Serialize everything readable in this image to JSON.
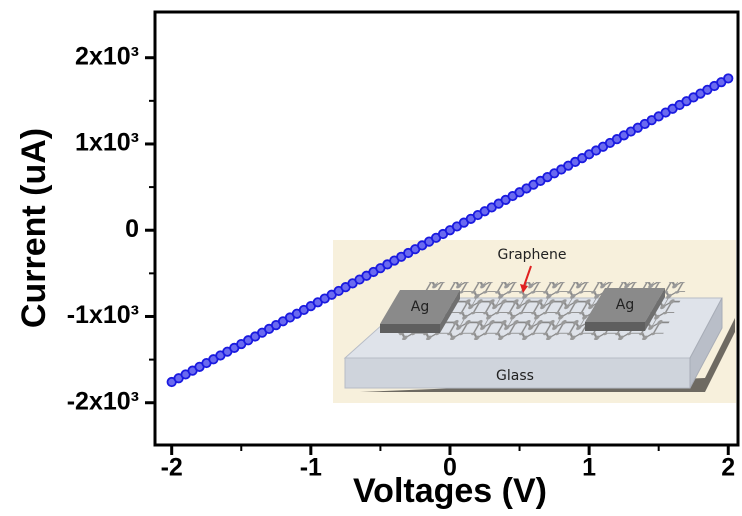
{
  "chart_data": {
    "type": "scatter",
    "xlabel": "Voltages (V)",
    "ylabel": "Current (uA)",
    "xlim": [
      -2.12,
      2.07
    ],
    "ylim": [
      -2490,
      2530
    ],
    "xticks": [
      -2,
      -1,
      0,
      1,
      2
    ],
    "yticks": [
      {
        "value": -2000,
        "label": "-2x10³"
      },
      {
        "value": -1000,
        "label": "-1x10³"
      },
      0,
      {
        "value": 1000,
        "label": "1x10³"
      },
      {
        "value": 2000,
        "label": "2x10³"
      }
    ],
    "xminorticks": [
      -1.5,
      -0.5,
      0.5,
      1.5
    ],
    "yminorticks": [
      -1500,
      -500,
      500,
      1500
    ],
    "series": [
      {
        "color": "#1a1ae0",
        "x": [
          -2,
          -1.95,
          -1.9,
          -1.85,
          -1.8,
          -1.75,
          -1.7,
          -1.65,
          -1.6,
          -1.55,
          -1.5,
          -1.45,
          -1.4,
          -1.35,
          -1.3,
          -1.25,
          -1.2,
          -1.15,
          -1.1,
          -1.05,
          -1,
          -0.95,
          -0.9,
          -0.85,
          -0.8,
          -0.75,
          -0.7,
          -0.65,
          -0.6,
          -0.55,
          -0.5,
          -0.45,
          -0.4,
          -0.35,
          -0.3,
          -0.25,
          -0.2,
          -0.15,
          -0.1,
          -0.05,
          0,
          0.05,
          0.1,
          0.15,
          0.2,
          0.25,
          0.3,
          0.35,
          0.4,
          0.45,
          0.5,
          0.55,
          0.6,
          0.65,
          0.7,
          0.75,
          0.8,
          0.85,
          0.9,
          0.95,
          1,
          1.05,
          1.1,
          1.15,
          1.2,
          1.25,
          1.3,
          1.35,
          1.4,
          1.45,
          1.5,
          1.55,
          1.6,
          1.65,
          1.7,
          1.75,
          1.8,
          1.85,
          1.9,
          1.95,
          2
        ],
        "values": [
          -1760,
          -1716,
          -1672,
          -1628,
          -1584,
          -1540,
          -1496,
          -1452,
          -1408,
          -1364,
          -1320,
          -1276,
          -1232,
          -1188,
          -1144,
          -1100,
          -1056,
          -1012,
          -968,
          -924,
          -880,
          -836,
          -792,
          -748,
          -704,
          -660,
          -616,
          -572,
          -528,
          -484,
          -440,
          -396,
          -352,
          -308,
          -264,
          -220,
          -176,
          -132,
          -88,
          -44,
          0,
          44,
          88,
          132,
          176,
          220,
          264,
          308,
          352,
          396,
          440,
          484,
          528,
          572,
          616,
          660,
          704,
          748,
          792,
          836,
          880,
          924,
          968,
          1012,
          1056,
          1100,
          1144,
          1188,
          1232,
          1276,
          1320,
          1364,
          1408,
          1452,
          1496,
          1540,
          1584,
          1628,
          1672,
          1716,
          1760
        ]
      }
    ]
  },
  "inset": {
    "graphene": "Graphene",
    "ag_left": "Ag",
    "ag_right": "Ag",
    "glass": "Glass"
  }
}
